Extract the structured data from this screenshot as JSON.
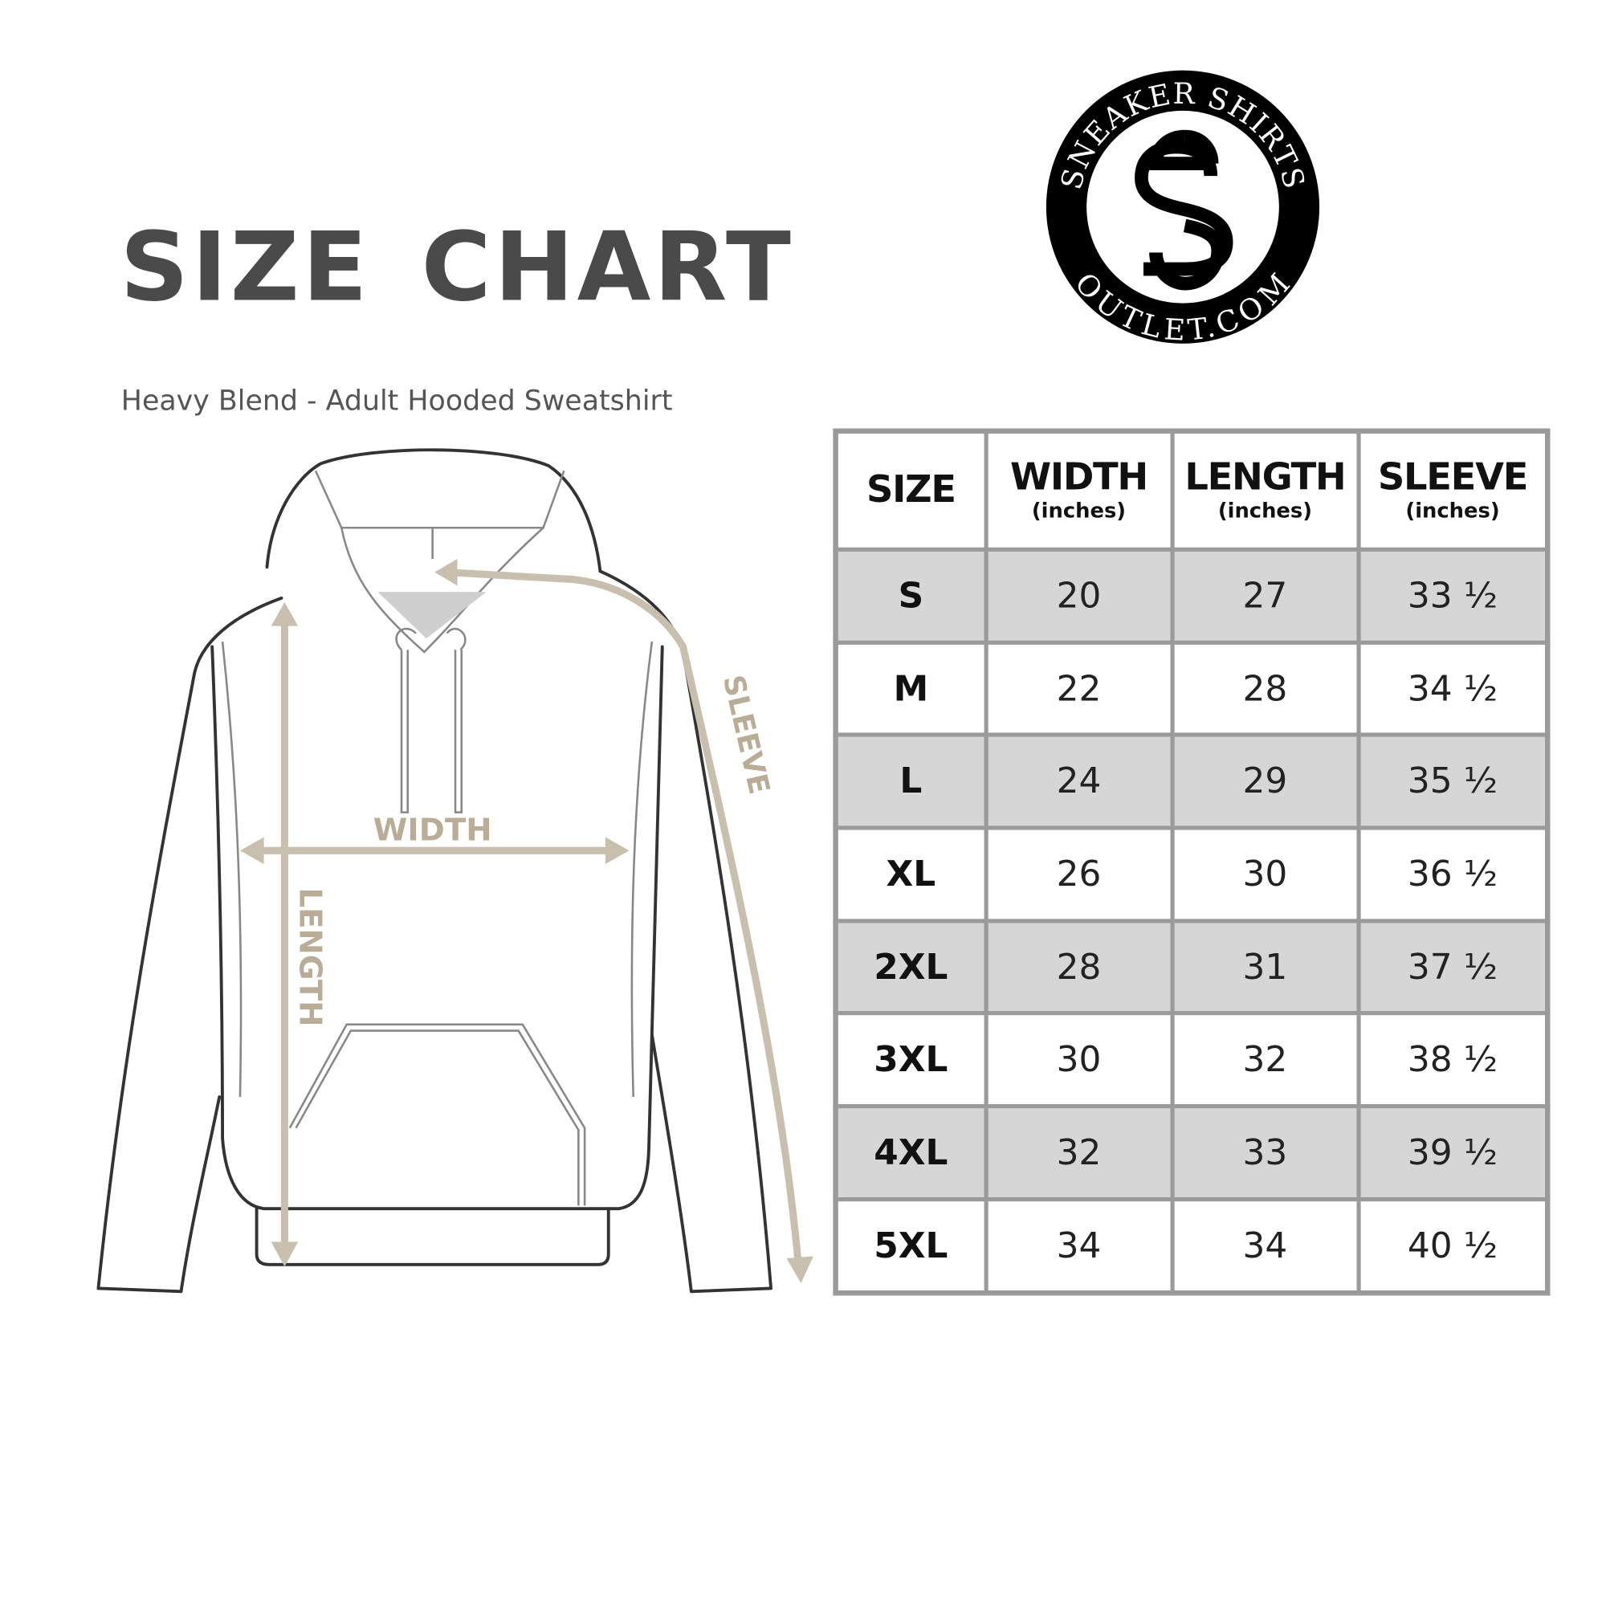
{
  "header": {
    "title": "SIZE CHART",
    "subtitle": "Heavy Blend - Adult Hooded Sweatshirt"
  },
  "logo": {
    "top_text": "SNEAKER SHIRTS",
    "bottom_text": "OUTLET.COM",
    "monogram": "SS"
  },
  "diagram": {
    "labels": {
      "width": "WIDTH",
      "length": "LENGTH",
      "sleeve": "SLEEVE"
    },
    "arrow_color": "#c9bfae",
    "outline_color": "#333333"
  },
  "table": {
    "columns": [
      {
        "label": "SIZE",
        "unit": ""
      },
      {
        "label": "WIDTH",
        "unit": "(inches)"
      },
      {
        "label": "LENGTH",
        "unit": "(inches)"
      },
      {
        "label": "SLEEVE",
        "unit": "(inches)"
      }
    ],
    "rows": [
      [
        "S",
        "20",
        "27",
        "33 ½"
      ],
      [
        "M",
        "22",
        "28",
        "34 ½"
      ],
      [
        "L",
        "24",
        "29",
        "35 ½"
      ],
      [
        "XL",
        "26",
        "30",
        "36 ½"
      ],
      [
        "2XL",
        "28",
        "31",
        "37 ½"
      ],
      [
        "3XL",
        "30",
        "32",
        "38 ½"
      ],
      [
        "4XL",
        "32",
        "33",
        "39 ½"
      ],
      [
        "5XL",
        "34",
        "34",
        "40 ½"
      ]
    ],
    "stripe_color": "#d6d6d6",
    "border_color": "#9a9a9a"
  }
}
